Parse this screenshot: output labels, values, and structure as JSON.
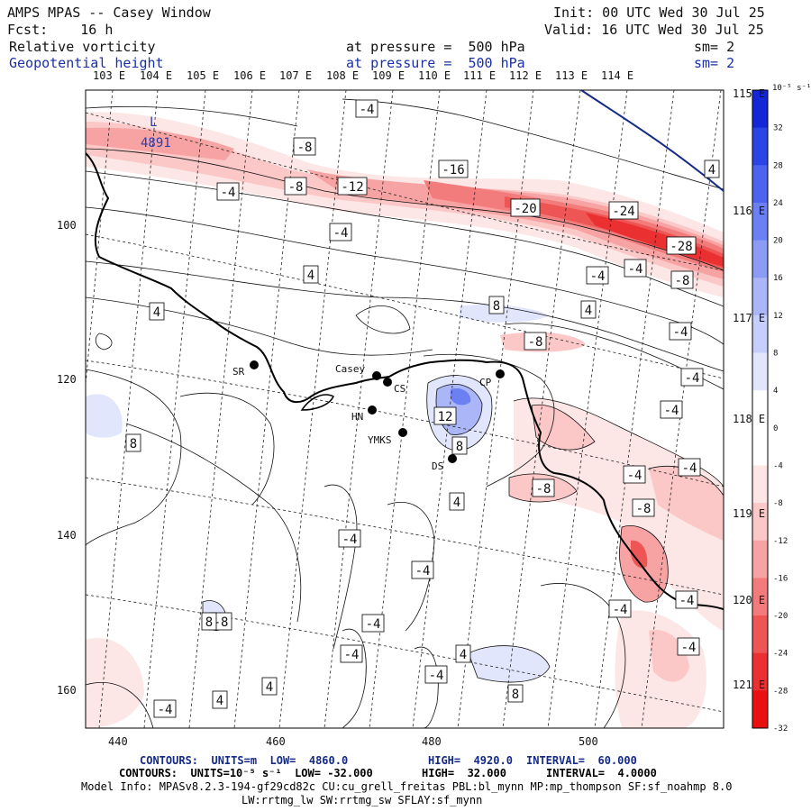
{
  "header": {
    "title": "AMPS MPAS -- Casey Window",
    "fcst": "Fcst:    16 h",
    "init": "Init: 00 UTC Wed 30 Jul 25",
    "valid": "Valid: 16 UTC Wed 30 Jul 25",
    "field1": "Relative vorticity",
    "field1_level": "at pressure =  500 hPa",
    "field1_sm": "sm= 2",
    "field2": "Geopotential height",
    "field2_level": "at pressure =  500 hPa",
    "field2_sm": "sm= 2"
  },
  "top_longitudes": [
    "103 E",
    "104 E",
    "105 E",
    "106 E",
    "107 E",
    "108 E",
    "109 E",
    "110 E",
    "111 E",
    "112 E",
    "113 E",
    "114 E"
  ],
  "right_longitudes": [
    "115 E",
    "116 E",
    "117 E",
    "118 E",
    "119 E",
    "120 E",
    "121 E"
  ],
  "x_axis_ticks": [
    "440",
    "460",
    "480",
    "500"
  ],
  "y_axis_ticks": [
    "100",
    "120",
    "140",
    "160"
  ],
  "colorbar": {
    "unit": "10⁻⁵ s⁻¹",
    "labels": [
      "32",
      "28",
      "24",
      "20",
      "16",
      "12",
      "8",
      "4",
      "0",
      "-4",
      "-8",
      "-12",
      "-16",
      "-20",
      "-24",
      "-28",
      "-32"
    ],
    "colors": [
      "#1426d6",
      "#2b44e6",
      "#4d63ee",
      "#6b80f2",
      "#8c9cf5",
      "#aab6f8",
      "#c6cefb",
      "#e2e6fd",
      "#ffffff",
      "#ffffff",
      "#fde6e6",
      "#fbc7c7",
      "#f7a3a3",
      "#f27c7c",
      "#ee5656",
      "#ea3030",
      "#e81010"
    ]
  },
  "stations": [
    {
      "name": "SR"
    },
    {
      "name": "Casey"
    },
    {
      "name": "CS"
    },
    {
      "name": "CP"
    },
    {
      "name": "HN"
    },
    {
      "name": "YMKS"
    },
    {
      "name": "DS"
    }
  ],
  "height_low": {
    "symbol": "L",
    "value": "4891"
  },
  "contour_labels": [
    "-4",
    "-8",
    "-8",
    "-4",
    "-12",
    "-16",
    "-20",
    "-24",
    "-28",
    "-4",
    "4",
    "-4",
    "-8",
    "4",
    "8",
    "4",
    "-8",
    "-4",
    "-4",
    "-4",
    "12",
    "8",
    "8",
    "-4",
    "-8",
    "-4",
    "-8",
    "-4",
    "4",
    "-4",
    "-4",
    "-8",
    "-4",
    "-4",
    "8",
    "-4",
    "-4",
    "4",
    "4",
    "-4",
    "4",
    "8",
    "-4",
    "-4",
    "4"
  ],
  "footer": {
    "line1_a": "CONTOURS:  UNITS=m  LOW=  4860.0",
    "line1_b": "HIGH=  4920.0",
    "line1_c": "INTERVAL=  60.000",
    "line2_a": "CONTOURS:  UNITS=10⁻⁵ s⁻¹  LOW= -32.000",
    "line2_b": "HIGH=  32.000",
    "line2_c": "INTERVAL=  4.0000",
    "model1": "Model Info: MPASv8.2.3-194-gf29cd82c CU:cu_grell_freitas PBL:bl_mynn MP:mp_thompson SF:sf_noahmp 8.0",
    "model2": "LW:rrtmg_lw SW:rrtmg_sw SFLAY:sf_mynn"
  }
}
